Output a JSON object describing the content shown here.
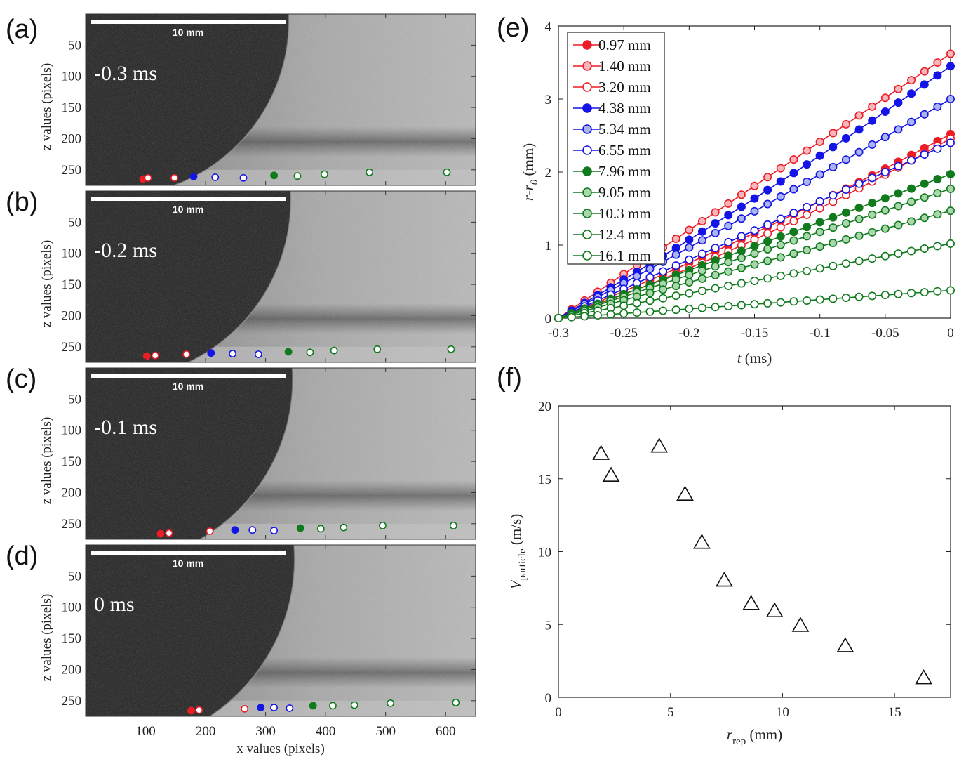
{
  "figure": {
    "image_panels": [
      {
        "label": "(a)",
        "time": "-0.3 ms",
        "scalebar": "10 mm",
        "front_frac": 0.0
      },
      {
        "label": "(b)",
        "time": "-0.2 ms",
        "scalebar": "10 mm",
        "front_frac": 0.33
      },
      {
        "label": "(c)",
        "time": "-0.1 ms",
        "scalebar": "10 mm",
        "front_frac": 0.66
      },
      {
        "label": "(d)",
        "time": "0 ms",
        "scalebar": "10 mm",
        "front_frac": 1.0
      }
    ],
    "image_axes": {
      "xlabel": "x values (pixels)",
      "ylabel": "z values (pixels)",
      "xlim": [
        0,
        650
      ],
      "ylim": [
        0,
        275
      ],
      "xticks": [
        100,
        200,
        300,
        400,
        500,
        600
      ],
      "yticks": [
        50,
        100,
        150,
        200,
        250
      ]
    },
    "markers": {
      "colors": {
        "red": "#ee1c25",
        "blue": "#1414e6",
        "green": "#107a1c",
        "red_light": "#f7b6bb",
        "blue_light": "#aab4f0",
        "green_light": "#a9d6ad"
      },
      "styles": [
        "solid",
        "open",
        "open",
        "solid",
        "open",
        "open",
        "solid",
        "open",
        "open",
        "open",
        "open"
      ],
      "color_keys": [
        "red",
        "red",
        "red",
        "blue",
        "blue",
        "blue",
        "green",
        "green",
        "green",
        "green",
        "green"
      ],
      "fill_keys": [
        "red",
        "white",
        "white",
        "blue",
        "white",
        "white",
        "green",
        "white",
        "white",
        "white",
        "white"
      ],
      "panel_positions": [
        {
          "x": [
            96,
            104,
            148,
            180,
            216,
            263,
            314,
            353,
            398,
            473,
            602
          ],
          "z": [
            265,
            263,
            263,
            261,
            262,
            263,
            259,
            260,
            257,
            254,
            254
          ]
        },
        {
          "x": [
            102,
            116,
            168,
            209,
            245,
            288,
            338,
            374,
            414,
            486,
            609
          ],
          "z": [
            265,
            264,
            262,
            260,
            261,
            262,
            258,
            259,
            256,
            254,
            254
          ]
        },
        {
          "x": [
            125,
            139,
            207,
            249,
            278,
            314,
            358,
            392,
            430,
            495,
            613
          ],
          "z": [
            266,
            265,
            262,
            260,
            260,
            261,
            257,
            258,
            256,
            253,
            253
          ]
        },
        {
          "x": [
            176,
            189,
            265,
            292,
            314,
            340,
            379,
            412,
            448,
            508,
            617
          ],
          "z": [
            266,
            265,
            263,
            261,
            261,
            262,
            258,
            258,
            257,
            254,
            253
          ]
        }
      ]
    }
  },
  "chart_data": [
    {
      "panel": "(e)",
      "type": "line",
      "xlabel": "t (ms)",
      "ylabel": "r-r0 (mm)",
      "ylabel_main": "r-r",
      "ylabel_sub": "0",
      "ylabel_unit": "(mm)",
      "xlabel_var": "t",
      "xlabel_unit": "(ms)",
      "xlim": [
        -0.3,
        0
      ],
      "ylim": [
        0,
        4
      ],
      "xticks": [
        -0.3,
        -0.25,
        -0.2,
        -0.15,
        -0.1,
        -0.05,
        0
      ],
      "xtick_labels": [
        "-0.3",
        "-0.25",
        "-0.2",
        "-0.15",
        "-0.1",
        "-0.05",
        "0"
      ],
      "yticks": [
        0,
        1,
        2,
        3,
        4
      ],
      "ytick_labels": [
        "0",
        "1",
        "2",
        "3",
        "4"
      ],
      "t_start": -0.3,
      "t_step": 0.01,
      "n_points": 31,
      "legend_position": "top-left",
      "series": [
        {
          "name": "0.97 mm",
          "color": "#ee1c25",
          "fill": "#ee1c25",
          "final": 2.52
        },
        {
          "name": "1.40 mm",
          "color": "#ee1c25",
          "fill": "#f7b6bb",
          "final": 3.62
        },
        {
          "name": "3.20 mm",
          "color": "#ee1c25",
          "fill": "#ffffff",
          "final": 2.46
        },
        {
          "name": "4.38 mm",
          "color": "#1414e6",
          "fill": "#1414e6",
          "final": 3.45
        },
        {
          "name": "5.34 mm",
          "color": "#1414e6",
          "fill": "#aab4f0",
          "final": 3.0
        },
        {
          "name": "6.55 mm",
          "color": "#1414e6",
          "fill": "#ffffff",
          "final": 2.4
        },
        {
          "name": "7.96 mm",
          "color": "#107a1c",
          "fill": "#107a1c",
          "final": 1.97
        },
        {
          "name": "9.05 mm",
          "color": "#107a1c",
          "fill": "#a9d6ad",
          "final": 1.77
        },
        {
          "name": "10.3 mm",
          "color": "#107a1c",
          "fill": "#a9d6ad",
          "final": 1.47
        },
        {
          "name": "12.4 mm",
          "color": "#107a1c",
          "fill": "#ffffff",
          "final": 1.02
        },
        {
          "name": "16.1 mm",
          "color": "#107a1c",
          "fill": "#ffffff",
          "final": 0.38
        }
      ]
    },
    {
      "panel": "(f)",
      "type": "scatter",
      "xlabel": "r_rep (mm)",
      "ylabel": "V_particle (m/s)",
      "xlabel_main": "r",
      "xlabel_sub": "rep",
      "xlabel_unit": "(mm)",
      "ylabel_main": "V",
      "ylabel_sub": "particle",
      "ylabel_unit": "(m/s)",
      "xlim": [
        0,
        17.5
      ],
      "ylim": [
        0,
        20
      ],
      "xticks": [
        0,
        5,
        10,
        15
      ],
      "xtick_labels": [
        "0",
        "5",
        "10",
        "15"
      ],
      "yticks": [
        0,
        5,
        10,
        15,
        20
      ],
      "ytick_labels": [
        "0",
        "5",
        "10",
        "15",
        "20"
      ],
      "marker": "open-triangle",
      "x": [
        1.9,
        2.35,
        4.5,
        5.65,
        6.4,
        7.4,
        8.6,
        9.65,
        10.8,
        12.8,
        16.3
      ],
      "y": [
        16.7,
        15.2,
        17.2,
        13.9,
        10.6,
        8.0,
        6.4,
        5.9,
        4.9,
        3.5,
        1.3
      ]
    }
  ]
}
